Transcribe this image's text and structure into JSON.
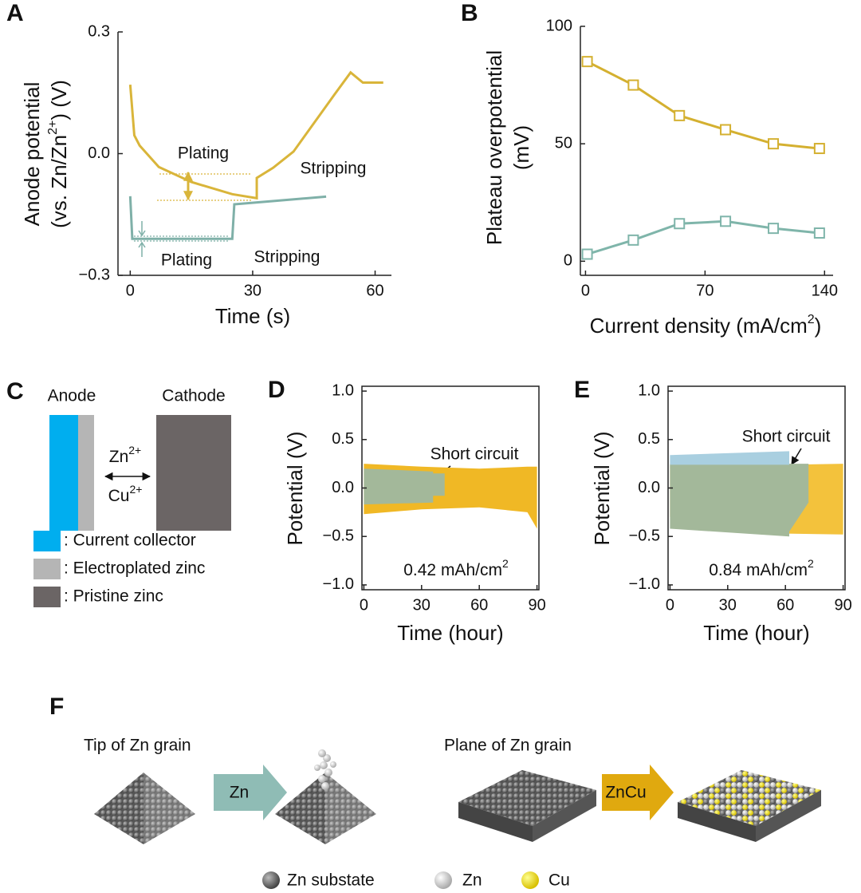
{
  "panel_labels": [
    "A",
    "B",
    "C",
    "D",
    "E",
    "F"
  ],
  "chart_data": [
    {
      "type": "line",
      "xlabel": "Time (s)",
      "ylabel": [
        "Anode potential",
        "(vs. Zn/Zn",
        "2+",
        ") (V)"
      ],
      "xlim": [
        -3,
        64
      ],
      "ylim": [
        -0.3,
        0.3
      ],
      "xticks": [
        0,
        30,
        60
      ],
      "yticks": [
        0.3,
        {
          "value": 0,
          "label": "0.0"
        },
        {
          "value": -0.3,
          "label": "−0.3"
        }
      ],
      "annotations": [
        "Plating",
        "Stripping",
        "Plating",
        "Stripping"
      ],
      "series": [
        {
          "color": "#d9b53a",
          "x": [
            0,
            1,
            2.3,
            7,
            15,
            25,
            31,
            31,
            35,
            40,
            45,
            50,
            54,
            57,
            62
          ],
          "values": [
            0.17,
            0.045,
            0.02,
            -0.033,
            -0.07,
            -0.1,
            -0.11,
            -0.06,
            -0.035,
            0.005,
            0.075,
            0.145,
            0.2,
            0.175,
            0.175
          ]
        },
        {
          "color": "#7fb0a8",
          "x": [
            0,
            0.5,
            25,
            25.5,
            48
          ],
          "values": [
            -0.105,
            -0.21,
            -0.21,
            -0.125,
            -0.106
          ]
        }
      ]
    },
    {
      "type": "line",
      "xlabel": [
        "Current density (mA/cm",
        "2",
        ")"
      ],
      "ylabel": [
        "Plateau overpotential",
        "(mV)"
      ],
      "xlim": [
        -3,
        145
      ],
      "ylim": [
        -6,
        100
      ],
      "xticks": [
        0,
        70,
        140
      ],
      "yticks": [
        0,
        50,
        100
      ],
      "marker": "square",
      "x": [
        1,
        28,
        55,
        82,
        110,
        137
      ],
      "series": [
        {
          "color": "#d4b030",
          "values": [
            85,
            75,
            62,
            56,
            50,
            48
          ]
        },
        {
          "color": "#7fb5aa",
          "values": [
            3,
            9,
            16,
            17,
            14,
            12
          ]
        }
      ]
    },
    {
      "type": "area",
      "xlabel": "Time (hour)",
      "ylabel": "Potential (V)",
      "xlim": [
        -1,
        91
      ],
      "ylim": [
        -1.05,
        1.05
      ],
      "xticks": [
        0,
        30,
        60,
        90
      ],
      "yticks": [
        {
          "value": 1,
          "label": "1.0"
        },
        0.5,
        {
          "value": 0,
          "label": "0.0"
        },
        {
          "value": -0.5,
          "label": "−0.5"
        },
        {
          "value": -1,
          "label": "−1.0"
        }
      ],
      "annotations": [
        "Short circuit",
        "0.42 mAh/cm",
        "2"
      ],
      "series": [
        {
          "color": "#f0b825",
          "x": [
            0,
            30,
            60,
            85,
            90
          ],
          "high": [
            0.25,
            0.22,
            0.2,
            0.22,
            0.22
          ],
          "low": [
            -0.27,
            -0.22,
            -0.2,
            -0.25,
            -0.42
          ]
        },
        {
          "color": "#a3b89a",
          "x": [
            0,
            36,
            36,
            42
          ],
          "high": [
            0.2,
            0.17,
            0.15,
            0.15
          ],
          "low": [
            -0.17,
            -0.15,
            -0.08,
            -0.08
          ]
        }
      ]
    },
    {
      "type": "area",
      "xlabel": "Time (hour)",
      "ylabel": "Potential (V)",
      "xlim": [
        -1,
        91
      ],
      "ylim": [
        -1.05,
        1.05
      ],
      "xticks": [
        0,
        30,
        60,
        90
      ],
      "yticks": [
        {
          "value": 1,
          "label": "1.0"
        },
        0.5,
        {
          "value": 0,
          "label": "0.0"
        },
        {
          "value": -0.5,
          "label": "−0.5"
        },
        {
          "value": -1,
          "label": "−1.0"
        }
      ],
      "annotations": [
        "Short circuit",
        "0.84 mAh/cm",
        "2"
      ],
      "series": [
        {
          "color": "#f3c23c",
          "x": [
            0,
            30,
            60,
            90
          ],
          "high": [
            0.25,
            0.24,
            0.24,
            0.25
          ],
          "low": [
            -0.3,
            -0.4,
            -0.47,
            -0.48
          ]
        },
        {
          "color": "#a9cfe0",
          "x": [
            0,
            62
          ],
          "high": [
            0.34,
            0.38
          ],
          "low": [
            0.2,
            0.2
          ]
        },
        {
          "color": "#a3b89a",
          "x": [
            0,
            62,
            62,
            72
          ],
          "high": [
            0.24,
            0.24,
            0.25,
            0.25
          ],
          "low": [
            -0.42,
            -0.5,
            -0.45,
            -0.15
          ]
        }
      ]
    }
  ],
  "diagram_c": {
    "anode": "Anode",
    "cathode": "Cathode",
    "ion1": [
      "Zn",
      "2+"
    ],
    "ion2": [
      "Cu",
      "2+"
    ],
    "legend": [
      ": Current collector",
      ": Electroplated zinc",
      ": Pristine zinc"
    ]
  },
  "diagram_f": {
    "left_title": "Tip of Zn grain",
    "left_arrow": "Zn",
    "right_title": "Plane of Zn grain",
    "right_arrow": "ZnCu",
    "legend": [
      "Zn substate",
      "Zn",
      "Cu"
    ]
  }
}
